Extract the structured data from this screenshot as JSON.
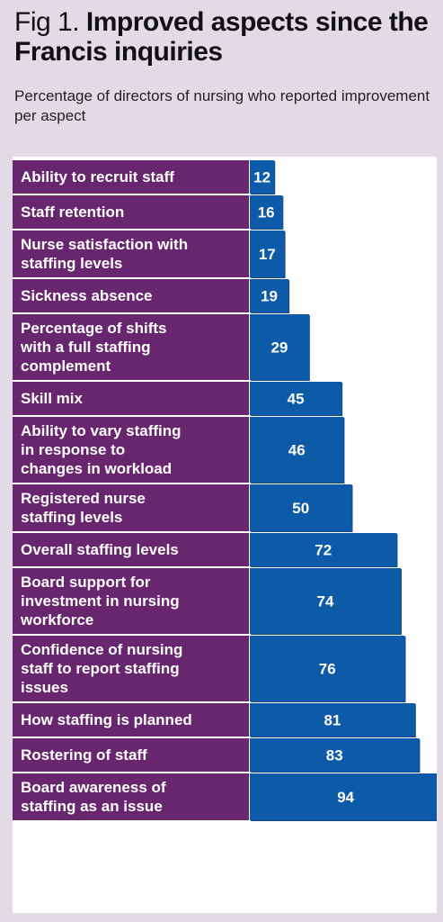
{
  "header": {
    "prefix": "Fig 1.",
    "title": "Improved aspects since the Francis inquiries",
    "subtitle": "Percentage of directors of nursing who reported improvement per aspect"
  },
  "colors": {
    "background": "#e2dbe6",
    "label_band": "#67266d",
    "bar": "#0d5aa8"
  },
  "chart_data": {
    "type": "bar",
    "orientation": "horizontal",
    "title": "Improved aspects since the Francis inquiries",
    "subtitle": "Percentage of directors of nursing who reported improvement per aspect",
    "categories": [
      [
        "Ability to recruit staff"
      ],
      [
        "Staff retention"
      ],
      [
        "Nurse satisfaction with",
        "staffing levels"
      ],
      [
        "Sickness absence"
      ],
      [
        "Percentage of shifts",
        "with a full staffing",
        "complement"
      ],
      [
        "Skill mix"
      ],
      [
        "Ability to vary staffing",
        "in response to",
        "changes in workload"
      ],
      [
        "Registered nurse",
        "staffing levels"
      ],
      [
        "Overall staffing levels"
      ],
      [
        "Board support for",
        "investment in nursing",
        "workforce"
      ],
      [
        "Confidence of nursing",
        "staff to report staffing",
        "issues"
      ],
      [
        "How staffing is planned"
      ],
      [
        "Rostering of staff"
      ],
      [
        "Board awareness of",
        "staffing as an issue"
      ]
    ],
    "values": [
      12,
      16,
      17,
      19,
      29,
      45,
      46,
      50,
      72,
      74,
      76,
      81,
      83,
      94
    ],
    "xlim": [
      0,
      100
    ],
    "grid": false,
    "legend": "none"
  }
}
